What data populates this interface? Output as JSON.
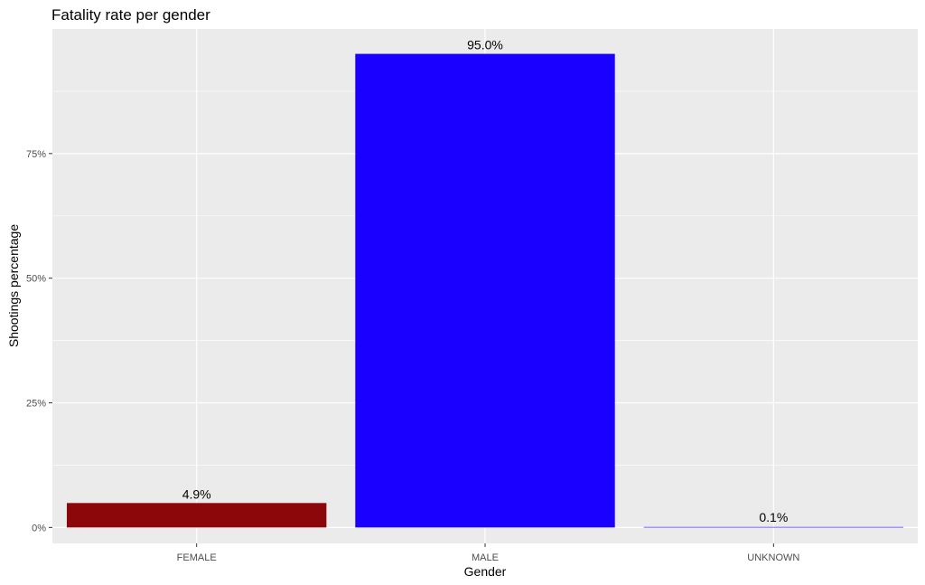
{
  "chart_data": {
    "type": "bar",
    "title": "Fatality rate per gender",
    "xlabel": "Gender",
    "ylabel": "Shootings percentage",
    "categories": [
      "FEMALE",
      "MALE",
      "UNKNOWN"
    ],
    "values": [
      4.9,
      95.0,
      0.1
    ],
    "value_labels": [
      "4.9%",
      "95.0%",
      "0.1%"
    ],
    "ylim": [
      -3.2,
      100
    ],
    "yticks": [
      0,
      25,
      50,
      75
    ],
    "ytick_labels": [
      "0%",
      "25%",
      "50%",
      "75%"
    ],
    "grid": true,
    "legend": "none",
    "colors": {
      "panel_background": "#ebebeb",
      "grid": "#ffffff",
      "bars": [
        "#8b0709",
        "#1a00ff",
        "#1a00ff"
      ]
    }
  }
}
